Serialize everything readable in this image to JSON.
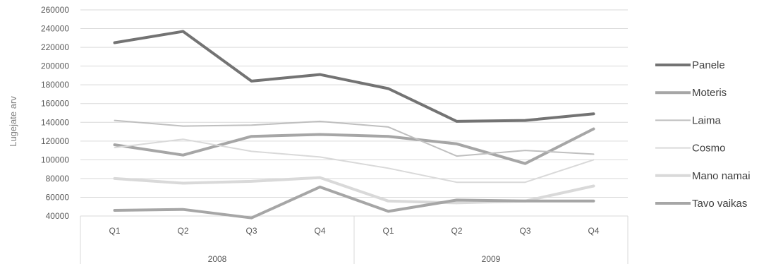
{
  "chart_data": {
    "type": "line",
    "title": "",
    "xlabel": "",
    "ylabel": "Lugejate arv",
    "ylim": [
      40000,
      260000
    ],
    "y_ticks": [
      "40000",
      "60000",
      "80000",
      "100000",
      "120000",
      "140000",
      "160000",
      "180000",
      "200000",
      "220000",
      "240000",
      "260000"
    ],
    "grid": true,
    "legend_position": "right",
    "categories": [
      "Q1",
      "Q2",
      "Q3",
      "Q4",
      "Q1",
      "Q2",
      "Q3",
      "Q4"
    ],
    "groups": [
      {
        "label": "2008",
        "span": [
          0,
          3
        ]
      },
      {
        "label": "2009",
        "span": [
          4,
          7
        ]
      }
    ],
    "series": [
      {
        "name": "Panele",
        "color": "#737373",
        "width": 4,
        "values": [
          225000,
          237000,
          184000,
          191000,
          176000,
          141000,
          142000,
          149000
        ]
      },
      {
        "name": "Moteris",
        "color": "#a6a6a6",
        "width": 4,
        "values": [
          116000,
          105000,
          125000,
          127000,
          125000,
          117000,
          96000,
          133000
        ]
      },
      {
        "name": "Laima",
        "color": "#bfbfbf",
        "width": 2,
        "values": [
          142000,
          136000,
          137000,
          141000,
          135000,
          104000,
          110000,
          106000
        ]
      },
      {
        "name": "Cosmo",
        "color": "#d9d9d9",
        "width": 2,
        "values": [
          113000,
          122000,
          109000,
          103000,
          91000,
          76000,
          76000,
          100000
        ]
      },
      {
        "name": "Mano namai",
        "color": "#d9d9d9",
        "width": 4,
        "values": [
          80000,
          75000,
          77000,
          81000,
          56000,
          54000,
          56000,
          72000
        ]
      },
      {
        "name": "Tavo vaikas",
        "color": "#a6a6a6",
        "width": 4,
        "values": [
          46000,
          47000,
          38000,
          71000,
          45000,
          57000,
          56000,
          56000
        ]
      }
    ]
  }
}
